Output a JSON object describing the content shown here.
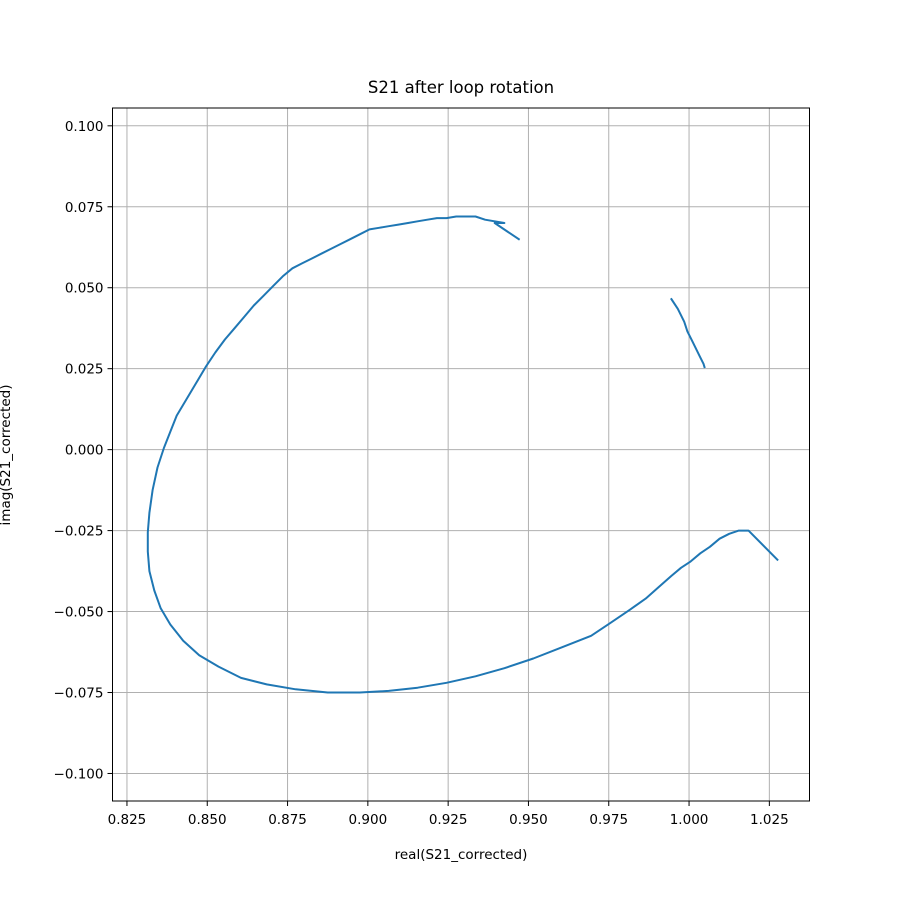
{
  "chart_data": {
    "type": "line",
    "title": "S21 after loop rotation",
    "xlabel": "real(S21_corrected)",
    "ylabel": "imag(S21_corrected)",
    "xlim": [
      0.8205,
      1.0375
    ],
    "ylim": [
      -0.1085,
      0.1055
    ],
    "xticks": [
      0.825,
      0.85,
      0.875,
      0.9,
      0.925,
      0.95,
      0.975,
      1.0,
      1.025
    ],
    "xtick_labels": [
      "0.825",
      "0.850",
      "0.875",
      "0.900",
      "0.925",
      "0.950",
      "0.975",
      "1.000",
      "1.025"
    ],
    "yticks": [
      -0.1,
      -0.075,
      -0.05,
      -0.025,
      0.0,
      0.025,
      0.05,
      0.075,
      0.1
    ],
    "ytick_labels": [
      "−0.100",
      "−0.075",
      "−0.050",
      "−0.025",
      "0.000",
      "0.025",
      "0.050",
      "0.075",
      "0.100"
    ],
    "grid": true,
    "series": [
      {
        "color": "#1f77b4",
        "x": [
          0.947,
          0.9395,
          0.9425,
          0.9365,
          0.9335,
          0.9305,
          0.9275,
          0.9245,
          0.9215,
          0.9185,
          0.9155,
          0.9125,
          0.9095,
          0.9065,
          0.9035,
          0.9005,
          0.8975,
          0.8945,
          0.8915,
          0.8885,
          0.8855,
          0.8825,
          0.8795,
          0.8765,
          0.8735,
          0.8705,
          0.8675,
          0.8645,
          0.8615,
          0.8585,
          0.8555,
          0.8525,
          0.8495,
          0.8465,
          0.8435,
          0.8405,
          0.8385,
          0.8365,
          0.8345,
          0.833,
          0.832,
          0.8315,
          0.8315,
          0.832,
          0.8335,
          0.8355,
          0.8385,
          0.8425,
          0.8475,
          0.8535,
          0.8605,
          0.8685,
          0.8775,
          0.8875,
          0.8975,
          0.9065,
          0.9155,
          0.9245,
          0.9335,
          0.9425,
          0.9515,
          0.9605,
          0.9695,
          0.9755,
          0.9815,
          0.9865,
          0.9905,
          0.9945,
          0.9975,
          1.0005,
          1.0035,
          1.0065,
          1.0095,
          1.0125,
          1.0155,
          1.0185,
          1.0275
        ],
        "y": [
          0.065,
          0.07,
          0.07,
          0.071,
          0.072,
          0.072,
          0.072,
          0.0715,
          0.0715,
          0.071,
          0.0705,
          0.07,
          0.0695,
          0.069,
          0.0685,
          0.068,
          0.0665,
          0.065,
          0.0635,
          0.062,
          0.0605,
          0.059,
          0.0575,
          0.056,
          0.0535,
          0.0505,
          0.0475,
          0.0445,
          0.041,
          0.0375,
          0.034,
          0.03,
          0.0255,
          0.0205,
          0.0155,
          0.0105,
          0.0055,
          0.0005,
          -0.0055,
          -0.0125,
          -0.0195,
          -0.0255,
          -0.0315,
          -0.0375,
          -0.0435,
          -0.049,
          -0.054,
          -0.059,
          -0.0635,
          -0.067,
          -0.0705,
          -0.0725,
          -0.074,
          -0.075,
          -0.075,
          -0.0745,
          -0.0735,
          -0.072,
          -0.07,
          -0.0675,
          -0.0645,
          -0.061,
          -0.0575,
          -0.0535,
          -0.0495,
          -0.046,
          -0.0425,
          -0.039,
          -0.0365,
          -0.0345,
          -0.032,
          -0.03,
          -0.0275,
          -0.026,
          -0.025,
          -0.025,
          -0.034
        ]
      },
      {
        "color": "#1f77b4",
        "x": [
          0.9945,
          0.9965,
          0.9985,
          0.9995,
          1.001,
          1.0025,
          1.0035,
          1.0045,
          1.0048
        ],
        "y": [
          0.0465,
          0.0435,
          0.0395,
          0.0365,
          0.0335,
          0.0305,
          0.0285,
          0.0265,
          0.0255
        ]
      }
    ]
  }
}
